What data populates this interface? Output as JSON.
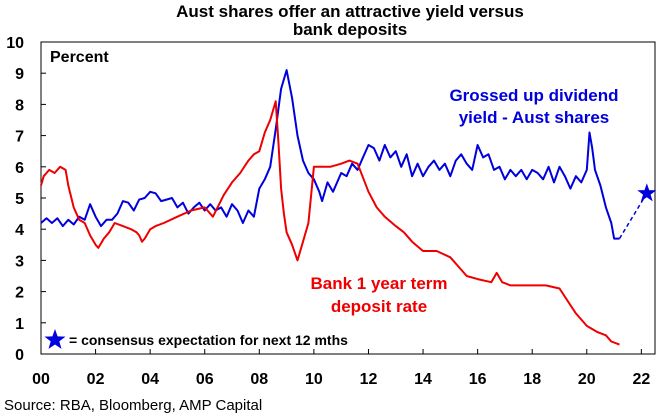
{
  "chart_data": {
    "type": "line",
    "title_line1": "Aust shares offer an attractive yield versus",
    "title_line2": "bank deposits",
    "unit_label": "Percent",
    "xlim": [
      2000,
      2022.5
    ],
    "ylim": [
      0,
      10
    ],
    "x_ticks": [
      {
        "value": 2000,
        "label": "00"
      },
      {
        "value": 2002,
        "label": "02"
      },
      {
        "value": 2004,
        "label": "04"
      },
      {
        "value": 2006,
        "label": "06"
      },
      {
        "value": 2008,
        "label": "08"
      },
      {
        "value": 2010,
        "label": "10"
      },
      {
        "value": 2012,
        "label": "12"
      },
      {
        "value": 2014,
        "label": "14"
      },
      {
        "value": 2016,
        "label": "16"
      },
      {
        "value": 2018,
        "label": "18"
      },
      {
        "value": 2020,
        "label": "20"
      },
      {
        "value": 2022,
        "label": "22"
      }
    ],
    "y_ticks": [
      0,
      1,
      2,
      3,
      4,
      5,
      6,
      7,
      8,
      9,
      10
    ],
    "series": [
      {
        "name": "Grossed up dividend yield - Aust shares",
        "color": "#0000dd",
        "points": [
          [
            2000.0,
            4.2
          ],
          [
            2000.2,
            4.35
          ],
          [
            2000.4,
            4.2
          ],
          [
            2000.6,
            4.35
          ],
          [
            2000.8,
            4.1
          ],
          [
            2001.0,
            4.3
          ],
          [
            2001.2,
            4.15
          ],
          [
            2001.4,
            4.4
          ],
          [
            2001.6,
            4.3
          ],
          [
            2001.8,
            4.8
          ],
          [
            2002.0,
            4.4
          ],
          [
            2002.2,
            4.1
          ],
          [
            2002.4,
            4.3
          ],
          [
            2002.6,
            4.3
          ],
          [
            2002.8,
            4.5
          ],
          [
            2003.0,
            4.9
          ],
          [
            2003.2,
            4.85
          ],
          [
            2003.4,
            4.6
          ],
          [
            2003.6,
            4.95
          ],
          [
            2003.8,
            5.0
          ],
          [
            2004.0,
            5.2
          ],
          [
            2004.2,
            5.15
          ],
          [
            2004.4,
            4.9
          ],
          [
            2004.6,
            4.95
          ],
          [
            2004.8,
            5.0
          ],
          [
            2005.0,
            4.7
          ],
          [
            2005.2,
            4.85
          ],
          [
            2005.4,
            4.5
          ],
          [
            2005.6,
            4.7
          ],
          [
            2005.8,
            4.85
          ],
          [
            2006.0,
            4.6
          ],
          [
            2006.2,
            4.8
          ],
          [
            2006.4,
            4.6
          ],
          [
            2006.6,
            4.7
          ],
          [
            2006.8,
            4.4
          ],
          [
            2007.0,
            4.8
          ],
          [
            2007.2,
            4.6
          ],
          [
            2007.4,
            4.2
          ],
          [
            2007.6,
            4.6
          ],
          [
            2007.8,
            4.4
          ],
          [
            2008.0,
            5.3
          ],
          [
            2008.2,
            5.6
          ],
          [
            2008.4,
            6.0
          ],
          [
            2008.6,
            7.2
          ],
          [
            2008.8,
            8.5
          ],
          [
            2009.0,
            9.1
          ],
          [
            2009.2,
            8.2
          ],
          [
            2009.4,
            7.0
          ],
          [
            2009.6,
            6.2
          ],
          [
            2009.8,
            5.8
          ],
          [
            2010.0,
            5.6
          ],
          [
            2010.2,
            5.2
          ],
          [
            2010.3,
            4.9
          ],
          [
            2010.5,
            5.5
          ],
          [
            2010.7,
            5.2
          ],
          [
            2011.0,
            5.8
          ],
          [
            2011.2,
            5.7
          ],
          [
            2011.4,
            6.1
          ],
          [
            2011.6,
            5.9
          ],
          [
            2011.8,
            6.3
          ],
          [
            2012.0,
            6.7
          ],
          [
            2012.2,
            6.6
          ],
          [
            2012.4,
            6.2
          ],
          [
            2012.6,
            6.7
          ],
          [
            2012.8,
            6.3
          ],
          [
            2013.0,
            6.5
          ],
          [
            2013.2,
            6.0
          ],
          [
            2013.4,
            6.4
          ],
          [
            2013.6,
            5.7
          ],
          [
            2013.8,
            6.1
          ],
          [
            2014.0,
            5.7
          ],
          [
            2014.2,
            6.0
          ],
          [
            2014.4,
            6.2
          ],
          [
            2014.6,
            5.9
          ],
          [
            2014.8,
            6.1
          ],
          [
            2015.0,
            5.7
          ],
          [
            2015.2,
            6.2
          ],
          [
            2015.4,
            6.4
          ],
          [
            2015.6,
            6.1
          ],
          [
            2015.8,
            5.9
          ],
          [
            2016.0,
            6.7
          ],
          [
            2016.2,
            6.3
          ],
          [
            2016.4,
            6.4
          ],
          [
            2016.6,
            5.9
          ],
          [
            2016.8,
            6.0
          ],
          [
            2017.0,
            5.6
          ],
          [
            2017.2,
            5.9
          ],
          [
            2017.4,
            5.7
          ],
          [
            2017.6,
            5.9
          ],
          [
            2017.8,
            5.6
          ],
          [
            2018.0,
            5.9
          ],
          [
            2018.2,
            5.8
          ],
          [
            2018.4,
            5.6
          ],
          [
            2018.6,
            6.0
          ],
          [
            2018.8,
            5.5
          ],
          [
            2019.0,
            6.0
          ],
          [
            2019.2,
            5.7
          ],
          [
            2019.4,
            5.3
          ],
          [
            2019.6,
            5.7
          ],
          [
            2019.8,
            5.5
          ],
          [
            2020.0,
            5.9
          ],
          [
            2020.1,
            7.1
          ],
          [
            2020.2,
            6.6
          ],
          [
            2020.3,
            5.9
          ],
          [
            2020.5,
            5.4
          ],
          [
            2020.7,
            4.7
          ],
          [
            2020.9,
            4.2
          ],
          [
            2021.0,
            3.7
          ],
          [
            2021.2,
            3.7
          ]
        ]
      },
      {
        "name": "Bank 1 year term deposit rate",
        "color": "#ee0000",
        "points": [
          [
            2000.0,
            5.4
          ],
          [
            2000.1,
            5.7
          ],
          [
            2000.3,
            5.9
          ],
          [
            2000.5,
            5.8
          ],
          [
            2000.7,
            6.0
          ],
          [
            2000.9,
            5.9
          ],
          [
            2001.0,
            5.4
          ],
          [
            2001.2,
            4.7
          ],
          [
            2001.4,
            4.3
          ],
          [
            2001.6,
            4.2
          ],
          [
            2001.8,
            3.8
          ],
          [
            2002.0,
            3.5
          ],
          [
            2002.1,
            3.4
          ],
          [
            2002.3,
            3.7
          ],
          [
            2002.5,
            3.9
          ],
          [
            2002.7,
            4.2
          ],
          [
            2003.0,
            4.1
          ],
          [
            2003.3,
            4.0
          ],
          [
            2003.5,
            3.9
          ],
          [
            2003.6,
            3.8
          ],
          [
            2003.7,
            3.6
          ],
          [
            2003.8,
            3.7
          ],
          [
            2004.0,
            4.0
          ],
          [
            2004.2,
            4.1
          ],
          [
            2004.5,
            4.2
          ],
          [
            2005.0,
            4.4
          ],
          [
            2005.5,
            4.6
          ],
          [
            2006.0,
            4.7
          ],
          [
            2006.3,
            4.4
          ],
          [
            2006.7,
            5.1
          ],
          [
            2007.0,
            5.5
          ],
          [
            2007.3,
            5.8
          ],
          [
            2007.6,
            6.2
          ],
          [
            2007.8,
            6.4
          ],
          [
            2008.0,
            6.5
          ],
          [
            2008.2,
            7.1
          ],
          [
            2008.4,
            7.5
          ],
          [
            2008.6,
            8.1
          ],
          [
            2008.7,
            6.8
          ],
          [
            2008.8,
            5.3
          ],
          [
            2008.9,
            4.5
          ],
          [
            2009.0,
            3.9
          ],
          [
            2009.2,
            3.5
          ],
          [
            2009.4,
            3.0
          ],
          [
            2009.6,
            3.6
          ],
          [
            2009.8,
            4.2
          ],
          [
            2010.0,
            6.0
          ],
          [
            2010.3,
            6.0
          ],
          [
            2010.6,
            6.0
          ],
          [
            2011.0,
            6.1
          ],
          [
            2011.3,
            6.2
          ],
          [
            2011.6,
            6.1
          ],
          [
            2012.0,
            5.2
          ],
          [
            2012.3,
            4.7
          ],
          [
            2012.6,
            4.4
          ],
          [
            2013.0,
            4.1
          ],
          [
            2013.3,
            3.9
          ],
          [
            2013.6,
            3.6
          ],
          [
            2014.0,
            3.3
          ],
          [
            2014.5,
            3.3
          ],
          [
            2015.0,
            3.1
          ],
          [
            2015.3,
            2.8
          ],
          [
            2015.6,
            2.5
          ],
          [
            2016.0,
            2.4
          ],
          [
            2016.5,
            2.3
          ],
          [
            2016.7,
            2.6
          ],
          [
            2016.9,
            2.3
          ],
          [
            2017.2,
            2.2
          ],
          [
            2017.6,
            2.2
          ],
          [
            2018.0,
            2.2
          ],
          [
            2018.5,
            2.2
          ],
          [
            2019.0,
            2.1
          ],
          [
            2019.3,
            1.7
          ],
          [
            2019.6,
            1.3
          ],
          [
            2020.0,
            0.9
          ],
          [
            2020.4,
            0.7
          ],
          [
            2020.7,
            0.6
          ],
          [
            2020.9,
            0.4
          ],
          [
            2021.2,
            0.3
          ]
        ]
      }
    ],
    "projection": {
      "from": [
        2021.2,
        3.7
      ],
      "to": [
        2022.2,
        5.15
      ],
      "color": "#0000dd",
      "marker": "star"
    },
    "annotations": {
      "blue_line1": "Grossed up dividend",
      "blue_line2": "yield - Aust shares",
      "red_line1": "Bank 1 year term",
      "red_line2": "deposit rate",
      "legend_text": "= consensus expectation for next 12 mths"
    },
    "source": "Source: RBA, Bloomberg, AMP Capital"
  }
}
